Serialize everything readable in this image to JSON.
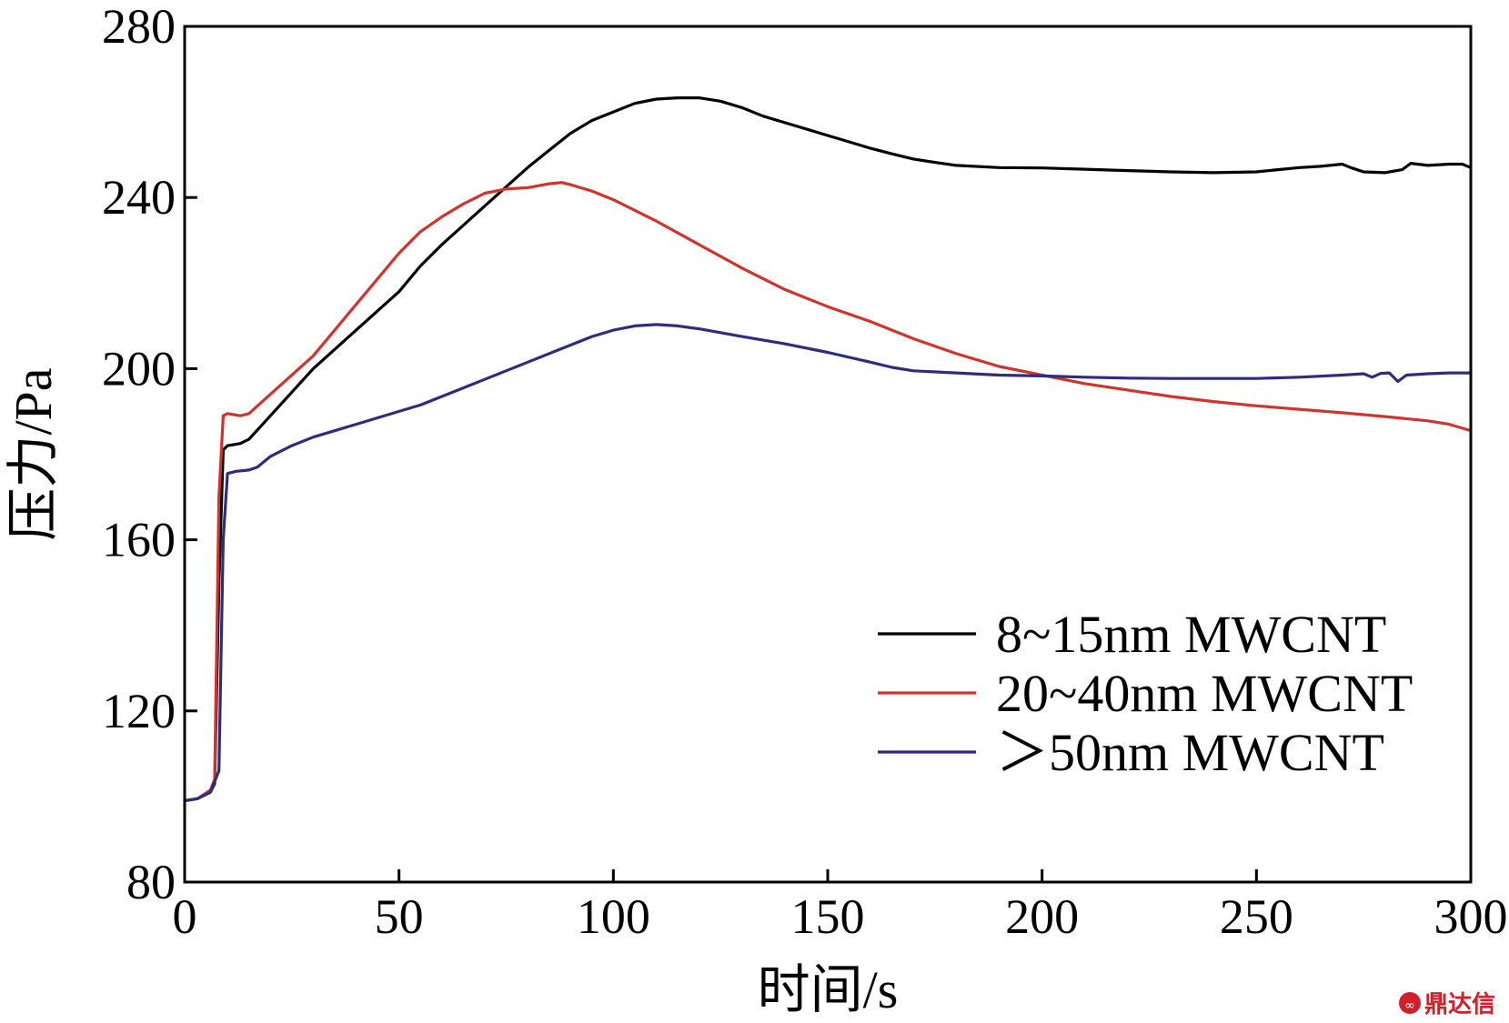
{
  "chart_data": {
    "type": "line",
    "title": "",
    "xlabel": "时间/s",
    "ylabel": "压力/Pa",
    "xlim": [
      0,
      300
    ],
    "ylim": [
      80,
      280
    ],
    "xticks": [
      0,
      50,
      100,
      150,
      200,
      250,
      300
    ],
    "yticks": [
      80,
      120,
      160,
      200,
      240,
      280
    ],
    "legend_position": "lower-right",
    "series": [
      {
        "name": "8~15nm MWCNT",
        "color": "#000000",
        "points": [
          [
            0,
            99
          ],
          [
            3,
            99.5
          ],
          [
            6,
            101
          ],
          [
            7,
            103
          ],
          [
            8,
            150
          ],
          [
            9,
            181
          ],
          [
            10,
            182
          ],
          [
            13,
            182.5
          ],
          [
            15,
            183.5
          ],
          [
            20,
            189
          ],
          [
            30,
            200
          ],
          [
            40,
            209
          ],
          [
            50,
            218
          ],
          [
            55,
            224
          ],
          [
            60,
            229
          ],
          [
            70,
            238
          ],
          [
            80,
            247
          ],
          [
            85,
            251
          ],
          [
            90,
            255
          ],
          [
            95,
            258
          ],
          [
            100,
            260
          ],
          [
            105,
            262
          ],
          [
            110,
            263
          ],
          [
            115,
            263.3
          ],
          [
            120,
            263.3
          ],
          [
            125,
            262.5
          ],
          [
            130,
            261
          ],
          [
            135,
            259
          ],
          [
            140,
            257.5
          ],
          [
            145,
            256
          ],
          [
            150,
            254.5
          ],
          [
            155,
            253
          ],
          [
            160,
            251.5
          ],
          [
            165,
            250.2
          ],
          [
            170,
            249
          ],
          [
            175,
            248.2
          ],
          [
            180,
            247.5
          ],
          [
            190,
            247
          ],
          [
            200,
            246.9
          ],
          [
            210,
            246.6
          ],
          [
            220,
            246.3
          ],
          [
            230,
            246
          ],
          [
            240,
            245.8
          ],
          [
            250,
            246
          ],
          [
            255,
            246.5
          ],
          [
            260,
            247
          ],
          [
            265,
            247.3
          ],
          [
            270,
            247.8
          ],
          [
            272,
            247
          ],
          [
            275,
            246
          ],
          [
            280,
            245.8
          ],
          [
            284,
            246.5
          ],
          [
            286,
            248
          ],
          [
            290,
            247.5
          ],
          [
            295,
            247.8
          ],
          [
            298,
            247.8
          ],
          [
            300,
            247
          ]
        ]
      },
      {
        "name": "20~40nm MWCNT",
        "color": "#d0342c",
        "points": [
          [
            0,
            99
          ],
          [
            3,
            99.5
          ],
          [
            6,
            101.5
          ],
          [
            7,
            104
          ],
          [
            8,
            170
          ],
          [
            9,
            189
          ],
          [
            10,
            189.5
          ],
          [
            13,
            189
          ],
          [
            15,
            189.5
          ],
          [
            20,
            194
          ],
          [
            30,
            203
          ],
          [
            40,
            215
          ],
          [
            50,
            227
          ],
          [
            55,
            232
          ],
          [
            60,
            235.5
          ],
          [
            65,
            238.5
          ],
          [
            70,
            241
          ],
          [
            75,
            242
          ],
          [
            80,
            242.3
          ],
          [
            85,
            243.2
          ],
          [
            88,
            243.5
          ],
          [
            90,
            243
          ],
          [
            95,
            241.5
          ],
          [
            100,
            239.5
          ],
          [
            110,
            234.5
          ],
          [
            120,
            229
          ],
          [
            130,
            223.5
          ],
          [
            140,
            218.5
          ],
          [
            150,
            214.5
          ],
          [
            160,
            211
          ],
          [
            170,
            207
          ],
          [
            180,
            203.5
          ],
          [
            190,
            200.5
          ],
          [
            200,
            198.5
          ],
          [
            210,
            196.5
          ],
          [
            220,
            195
          ],
          [
            230,
            193.5
          ],
          [
            240,
            192.3
          ],
          [
            250,
            191.3
          ],
          [
            260,
            190.5
          ],
          [
            270,
            189.7
          ],
          [
            280,
            188.8
          ],
          [
            290,
            187.8
          ],
          [
            295,
            187
          ],
          [
            300,
            185.5
          ]
        ]
      },
      {
        "name": "＞50nm MWCNT",
        "color": "#2e2c7e",
        "points": [
          [
            0,
            99
          ],
          [
            3,
            99.5
          ],
          [
            6,
            101
          ],
          [
            8,
            106
          ],
          [
            9,
            160
          ],
          [
            10,
            175.5
          ],
          [
            12,
            176
          ],
          [
            15,
            176.3
          ],
          [
            17,
            177
          ],
          [
            20,
            179.5
          ],
          [
            25,
            182
          ],
          [
            30,
            184
          ],
          [
            40,
            187
          ],
          [
            50,
            190
          ],
          [
            55,
            191.5
          ],
          [
            60,
            193.5
          ],
          [
            70,
            197.5
          ],
          [
            80,
            201.5
          ],
          [
            90,
            205.5
          ],
          [
            95,
            207.5
          ],
          [
            100,
            209
          ],
          [
            105,
            210
          ],
          [
            110,
            210.3
          ],
          [
            115,
            210
          ],
          [
            120,
            209.3
          ],
          [
            130,
            207.5
          ],
          [
            140,
            205.8
          ],
          [
            150,
            203.8
          ],
          [
            160,
            201.5
          ],
          [
            165,
            200.3
          ],
          [
            170,
            199.5
          ],
          [
            180,
            199
          ],
          [
            190,
            198.5
          ],
          [
            200,
            198.3
          ],
          [
            210,
            198
          ],
          [
            220,
            197.8
          ],
          [
            230,
            197.7
          ],
          [
            240,
            197.7
          ],
          [
            250,
            197.7
          ],
          [
            260,
            198
          ],
          [
            270,
            198.5
          ],
          [
            275,
            198.8
          ],
          [
            277,
            198
          ],
          [
            279,
            198.9
          ],
          [
            281,
            199
          ],
          [
            283,
            197
          ],
          [
            285,
            198.5
          ],
          [
            290,
            198.8
          ],
          [
            295,
            199
          ],
          [
            300,
            199
          ]
        ]
      }
    ]
  },
  "watermark": {
    "text": "鼎达信",
    "color": "#d0202a",
    "icon": "watermark-logo-icon"
  }
}
